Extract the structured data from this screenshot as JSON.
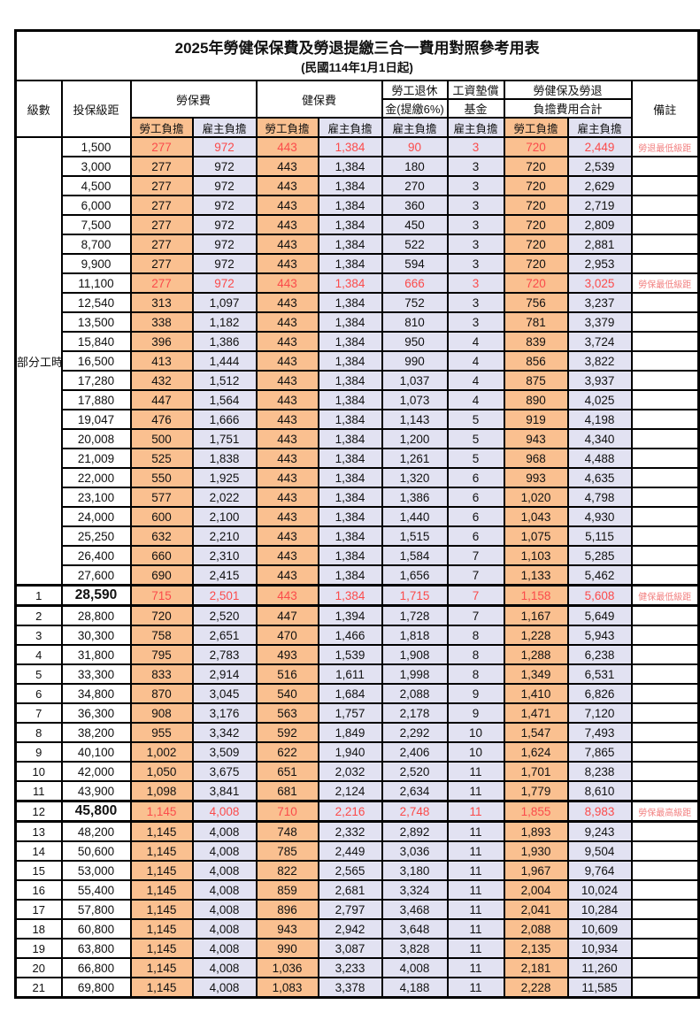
{
  "page": {
    "title": "2025年勞健保保費及勞退提繳三合一費用對照參考用表",
    "subtitle": "(民國114年1月1日起)"
  },
  "colors": {
    "employee_bg": "#FAC090",
    "employer_bg": "#E2E2F2",
    "highlight_text": "#FB4B4B",
    "note_text": "#F28080",
    "grid": "#000000"
  },
  "table": {
    "headers": {
      "level": "級數",
      "bracket": "投保級距",
      "labor": "勞保費",
      "health": "健保費",
      "pension_l1": "勞工退休",
      "pension_l2": "金(提繳6%)",
      "wage_l1": "工資墊償",
      "wage_l2": "基金",
      "total_l1": "勞健保及勞退",
      "total_l2": "負擔費用合計",
      "note": "備註",
      "employee": "勞工負擔",
      "employer": "雇主負擔"
    },
    "rows": [
      {
        "level": "部分工時",
        "span": 23,
        "bracket": "1,500",
        "v": [
          "277",
          "972",
          "443",
          "1,384",
          "90",
          "3",
          "720",
          "2,449"
        ],
        "note": "勞退最低級距",
        "hl": true
      },
      {
        "bracket": "3,000",
        "v": [
          "277",
          "972",
          "443",
          "1,384",
          "180",
          "3",
          "720",
          "2,539"
        ]
      },
      {
        "bracket": "4,500",
        "v": [
          "277",
          "972",
          "443",
          "1,384",
          "270",
          "3",
          "720",
          "2,629"
        ]
      },
      {
        "bracket": "6,000",
        "v": [
          "277",
          "972",
          "443",
          "1,384",
          "360",
          "3",
          "720",
          "2,719"
        ]
      },
      {
        "bracket": "7,500",
        "v": [
          "277",
          "972",
          "443",
          "1,384",
          "450",
          "3",
          "720",
          "2,809"
        ]
      },
      {
        "bracket": "8,700",
        "v": [
          "277",
          "972",
          "443",
          "1,384",
          "522",
          "3",
          "720",
          "2,881"
        ]
      },
      {
        "bracket": "9,900",
        "v": [
          "277",
          "972",
          "443",
          "1,384",
          "594",
          "3",
          "720",
          "2,953"
        ]
      },
      {
        "bracket": "11,100",
        "v": [
          "277",
          "972",
          "443",
          "1,384",
          "666",
          "3",
          "720",
          "3,025"
        ],
        "note": "勞保最低級距",
        "hl": true
      },
      {
        "bracket": "12,540",
        "v": [
          "313",
          "1,097",
          "443",
          "1,384",
          "752",
          "3",
          "756",
          "3,237"
        ]
      },
      {
        "bracket": "13,500",
        "v": [
          "338",
          "1,182",
          "443",
          "1,384",
          "810",
          "3",
          "781",
          "3,379"
        ]
      },
      {
        "bracket": "15,840",
        "v": [
          "396",
          "1,386",
          "443",
          "1,384",
          "950",
          "4",
          "839",
          "3,724"
        ]
      },
      {
        "bracket": "16,500",
        "v": [
          "413",
          "1,444",
          "443",
          "1,384",
          "990",
          "4",
          "856",
          "3,822"
        ]
      },
      {
        "bracket": "17,280",
        "v": [
          "432",
          "1,512",
          "443",
          "1,384",
          "1,037",
          "4",
          "875",
          "3,937"
        ]
      },
      {
        "bracket": "17,880",
        "v": [
          "447",
          "1,564",
          "443",
          "1,384",
          "1,073",
          "4",
          "890",
          "4,025"
        ]
      },
      {
        "bracket": "19,047",
        "v": [
          "476",
          "1,666",
          "443",
          "1,384",
          "1,143",
          "5",
          "919",
          "4,198"
        ]
      },
      {
        "bracket": "20,008",
        "v": [
          "500",
          "1,751",
          "443",
          "1,384",
          "1,200",
          "5",
          "943",
          "4,340"
        ]
      },
      {
        "bracket": "21,009",
        "v": [
          "525",
          "1,838",
          "443",
          "1,384",
          "1,261",
          "5",
          "968",
          "4,488"
        ]
      },
      {
        "bracket": "22,000",
        "v": [
          "550",
          "1,925",
          "443",
          "1,384",
          "1,320",
          "6",
          "993",
          "4,635"
        ]
      },
      {
        "bracket": "23,100",
        "v": [
          "577",
          "2,022",
          "443",
          "1,384",
          "1,386",
          "6",
          "1,020",
          "4,798"
        ]
      },
      {
        "bracket": "24,000",
        "v": [
          "600",
          "2,100",
          "443",
          "1,384",
          "1,440",
          "6",
          "1,043",
          "4,930"
        ]
      },
      {
        "bracket": "25,250",
        "v": [
          "632",
          "2,210",
          "443",
          "1,384",
          "1,515",
          "6",
          "1,075",
          "5,115"
        ]
      },
      {
        "bracket": "26,400",
        "v": [
          "660",
          "2,310",
          "443",
          "1,384",
          "1,584",
          "7",
          "1,103",
          "5,285"
        ]
      },
      {
        "bracket": "27,600",
        "v": [
          "690",
          "2,415",
          "443",
          "1,384",
          "1,656",
          "7",
          "1,133",
          "5,462"
        ]
      },
      {
        "level": "1",
        "bracket": "28,590",
        "v": [
          "715",
          "2,501",
          "443",
          "1,384",
          "1,715",
          "7",
          "1,158",
          "5,608"
        ],
        "note": "健保最低級距",
        "hl": true,
        "big": true,
        "sep": true
      },
      {
        "level": "2",
        "bracket": "28,800",
        "v": [
          "720",
          "2,520",
          "447",
          "1,394",
          "1,728",
          "7",
          "1,167",
          "5,649"
        ]
      },
      {
        "level": "3",
        "bracket": "30,300",
        "v": [
          "758",
          "2,651",
          "470",
          "1,466",
          "1,818",
          "8",
          "1,228",
          "5,943"
        ]
      },
      {
        "level": "4",
        "bracket": "31,800",
        "v": [
          "795",
          "2,783",
          "493",
          "1,539",
          "1,908",
          "8",
          "1,288",
          "6,238"
        ]
      },
      {
        "level": "5",
        "bracket": "33,300",
        "v": [
          "833",
          "2,914",
          "516",
          "1,611",
          "1,998",
          "8",
          "1,349",
          "6,531"
        ]
      },
      {
        "level": "6",
        "bracket": "34,800",
        "v": [
          "870",
          "3,045",
          "540",
          "1,684",
          "2,088",
          "9",
          "1,410",
          "6,826"
        ]
      },
      {
        "level": "7",
        "bracket": "36,300",
        "v": [
          "908",
          "3,176",
          "563",
          "1,757",
          "2,178",
          "9",
          "1,471",
          "7,120"
        ]
      },
      {
        "level": "8",
        "bracket": "38,200",
        "v": [
          "955",
          "3,342",
          "592",
          "1,849",
          "2,292",
          "10",
          "1,547",
          "7,493"
        ]
      },
      {
        "level": "9",
        "bracket": "40,100",
        "v": [
          "1,002",
          "3,509",
          "622",
          "1,940",
          "2,406",
          "10",
          "1,624",
          "7,865"
        ]
      },
      {
        "level": "10",
        "bracket": "42,000",
        "v": [
          "1,050",
          "3,675",
          "651",
          "2,032",
          "2,520",
          "11",
          "1,701",
          "8,238"
        ]
      },
      {
        "level": "11",
        "bracket": "43,900",
        "v": [
          "1,098",
          "3,841",
          "681",
          "2,124",
          "2,634",
          "11",
          "1,779",
          "8,610"
        ]
      },
      {
        "level": "12",
        "bracket": "45,800",
        "v": [
          "1,145",
          "4,008",
          "710",
          "2,216",
          "2,748",
          "11",
          "1,855",
          "8,983"
        ],
        "note": "勞保最高級距",
        "hl": true,
        "big": true,
        "sep": true
      },
      {
        "level": "13",
        "bracket": "48,200",
        "v": [
          "1,145",
          "4,008",
          "748",
          "2,332",
          "2,892",
          "11",
          "1,893",
          "9,243"
        ]
      },
      {
        "level": "14",
        "bracket": "50,600",
        "v": [
          "1,145",
          "4,008",
          "785",
          "2,449",
          "3,036",
          "11",
          "1,930",
          "9,504"
        ]
      },
      {
        "level": "15",
        "bracket": "53,000",
        "v": [
          "1,145",
          "4,008",
          "822",
          "2,565",
          "3,180",
          "11",
          "1,967",
          "9,764"
        ]
      },
      {
        "level": "16",
        "bracket": "55,400",
        "v": [
          "1,145",
          "4,008",
          "859",
          "2,681",
          "3,324",
          "11",
          "2,004",
          "10,024"
        ]
      },
      {
        "level": "17",
        "bracket": "57,800",
        "v": [
          "1,145",
          "4,008",
          "896",
          "2,797",
          "3,468",
          "11",
          "2,041",
          "10,284"
        ]
      },
      {
        "level": "18",
        "bracket": "60,800",
        "v": [
          "1,145",
          "4,008",
          "943",
          "2,942",
          "3,648",
          "11",
          "2,088",
          "10,609"
        ]
      },
      {
        "level": "19",
        "bracket": "63,800",
        "v": [
          "1,145",
          "4,008",
          "990",
          "3,087",
          "3,828",
          "11",
          "2,135",
          "10,934"
        ]
      },
      {
        "level": "20",
        "bracket": "66,800",
        "v": [
          "1,145",
          "4,008",
          "1,036",
          "3,233",
          "4,008",
          "11",
          "2,181",
          "11,260"
        ]
      },
      {
        "level": "21",
        "bracket": "69,800",
        "v": [
          "1,145",
          "4,008",
          "1,083",
          "3,378",
          "4,188",
          "11",
          "2,228",
          "11,585"
        ]
      }
    ]
  }
}
